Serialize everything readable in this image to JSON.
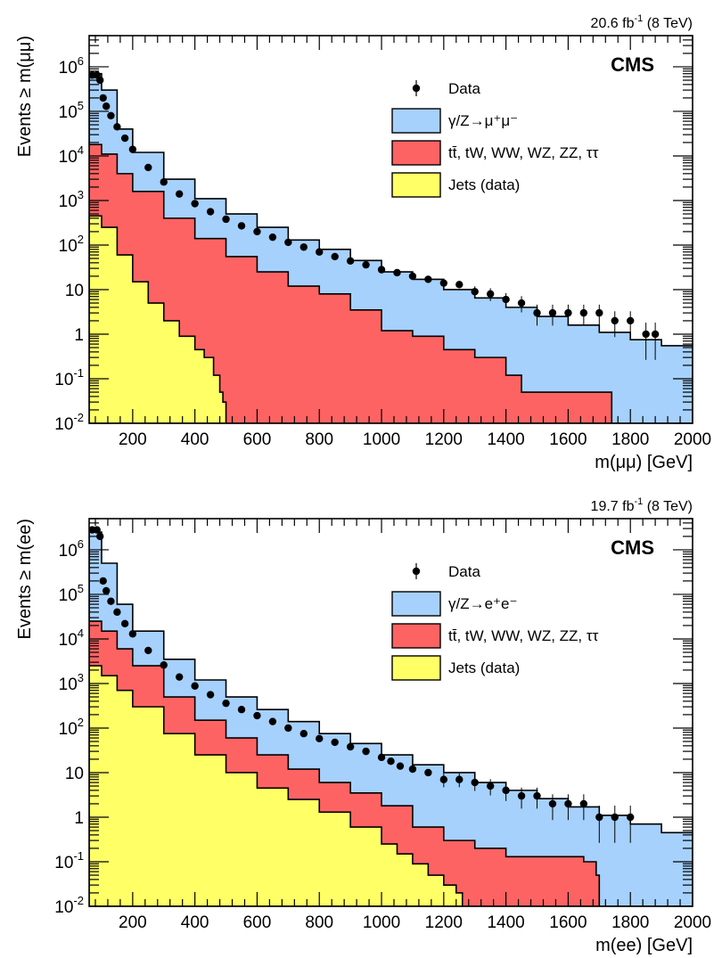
{
  "colors": {
    "dy": "#a6d1fc",
    "top": "#fe6363",
    "jets": "#ffff66",
    "outline": "#000000",
    "data": "#000000"
  },
  "chart_data": [
    {
      "type": "area",
      "lumi_label": "20.6 fb",
      "lumi_sup": "-1",
      "lumi_energy": "(8 TeV)",
      "experiment": "CMS",
      "xlabel": "m(μμ) [GeV]",
      "ylabel": "Events ≥ m(μμ)",
      "xlim": [
        60,
        2000
      ],
      "ylim": [
        0.01,
        5000000
      ],
      "log_y": true,
      "x_ticks": [
        200,
        400,
        600,
        800,
        1000,
        1200,
        1400,
        1600,
        1800,
        2000
      ],
      "y_ticks": [
        {
          "value": 0.01,
          "base": "10",
          "exp": "-2"
        },
        {
          "value": 0.1,
          "base": "10",
          "exp": "-1"
        },
        {
          "value": 1,
          "base": "1",
          "exp": ""
        },
        {
          "value": 10,
          "base": "10",
          "exp": ""
        },
        {
          "value": 100,
          "base": "10",
          "exp": "2"
        },
        {
          "value": 1000,
          "base": "10",
          "exp": "3"
        },
        {
          "value": 10000,
          "base": "10",
          "exp": "4"
        },
        {
          "value": 100000,
          "base": "10",
          "exp": "5"
        },
        {
          "value": 1000000,
          "base": "10",
          "exp": "6"
        }
      ],
      "legend": [
        {
          "key": "data",
          "label": "Data"
        },
        {
          "key": "dy",
          "label": "γ/Z→μ⁺μ⁻"
        },
        {
          "key": "top",
          "label": "tt̄, tW, WW, WZ, ZZ, ττ"
        },
        {
          "key": "jets",
          "label": "Jets (data)"
        }
      ],
      "series": [
        {
          "key": "jets",
          "x": [
            60,
            100,
            150,
            200,
            250,
            300,
            350,
            400,
            430,
            460,
            480,
            490,
            500
          ],
          "y": [
            450,
            250,
            60,
            15,
            5,
            2,
            0.9,
            0.45,
            0.3,
            0.12,
            0.05,
            0.03,
            0.01
          ]
        },
        {
          "key": "top",
          "x": [
            60,
            100,
            150,
            200,
            300,
            400,
            500,
            600,
            700,
            800,
            900,
            1000,
            1100,
            1200,
            1300,
            1400,
            1450,
            1500,
            1600,
            1700,
            1740
          ],
          "y": [
            18000,
            11000,
            4000,
            1600,
            400,
            140,
            55,
            25,
            12,
            8,
            3.5,
            1.2,
            0.9,
            0.45,
            0.3,
            0.12,
            0.05,
            0.05,
            0.05,
            0.05,
            0.01
          ]
        },
        {
          "key": "dy",
          "x": [
            60,
            100,
            150,
            200,
            300,
            400,
            500,
            600,
            700,
            800,
            900,
            1000,
            1100,
            1200,
            1300,
            1400,
            1500,
            1600,
            1700,
            1800,
            1900,
            2000
          ],
          "y": [
            700000,
            300000,
            40000,
            12000,
            3000,
            1100,
            500,
            250,
            130,
            80,
            45,
            25,
            17,
            10,
            6.5,
            4,
            2.5,
            1.6,
            1.1,
            0.75,
            0.55,
            0.38
          ]
        }
      ],
      "data_points": {
        "x": [
          70,
          85,
          95,
          105,
          115,
          130,
          150,
          175,
          200,
          250,
          300,
          350,
          400,
          450,
          500,
          550,
          600,
          650,
          700,
          750,
          800,
          850,
          900,
          950,
          1000,
          1050,
          1100,
          1150,
          1200,
          1250,
          1300,
          1350,
          1400,
          1450,
          1500,
          1550,
          1600,
          1650,
          1700,
          1750,
          1800,
          1850,
          1880
        ],
        "y": [
          650000,
          650000,
          500000,
          200000,
          130000,
          80000,
          45000,
          25000,
          14000,
          5500,
          2600,
          1400,
          850,
          560,
          380,
          270,
          200,
          150,
          115,
          90,
          70,
          55,
          44,
          36,
          28,
          24,
          20,
          17,
          14,
          13,
          9,
          8,
          6,
          5,
          3,
          3,
          3,
          3,
          3,
          2,
          2,
          1,
          1
        ]
      }
    },
    {
      "type": "area",
      "lumi_label": "19.7 fb",
      "lumi_sup": "-1",
      "lumi_energy": "(8 TeV)",
      "experiment": "CMS",
      "xlabel": "m(ee) [GeV]",
      "ylabel": "Events ≥ m(ee)",
      "xlim": [
        60,
        2000
      ],
      "ylim": [
        0.01,
        5000000
      ],
      "log_y": true,
      "x_ticks": [
        200,
        400,
        600,
        800,
        1000,
        1200,
        1400,
        1600,
        1800,
        2000
      ],
      "y_ticks": [
        {
          "value": 0.01,
          "base": "10",
          "exp": "-2"
        },
        {
          "value": 0.1,
          "base": "10",
          "exp": "-1"
        },
        {
          "value": 1,
          "base": "1",
          "exp": ""
        },
        {
          "value": 10,
          "base": "10",
          "exp": ""
        },
        {
          "value": 100,
          "base": "10",
          "exp": "2"
        },
        {
          "value": 1000,
          "base": "10",
          "exp": "3"
        },
        {
          "value": 10000,
          "base": "10",
          "exp": "4"
        },
        {
          "value": 100000,
          "base": "10",
          "exp": "5"
        },
        {
          "value": 1000000,
          "base": "10",
          "exp": "6"
        }
      ],
      "legend": [
        {
          "key": "data",
          "label": "Data"
        },
        {
          "key": "dy",
          "label": "γ/Z→e⁺e⁻"
        },
        {
          "key": "top",
          "label": "tt̄, tW, WW, WZ, ZZ, ττ"
        },
        {
          "key": "jets",
          "label": "Jets (data)"
        }
      ],
      "series": [
        {
          "key": "jets",
          "x": [
            60,
            100,
            150,
            200,
            300,
            400,
            500,
            600,
            700,
            800,
            900,
            1000,
            1050,
            1100,
            1150,
            1200,
            1240,
            1260
          ],
          "y": [
            2500,
            1500,
            700,
            300,
            75,
            25,
            10,
            4.5,
            2.5,
            1.3,
            0.6,
            0.25,
            0.15,
            0.09,
            0.05,
            0.03,
            0.02,
            0.01
          ]
        },
        {
          "key": "top",
          "x": [
            60,
            100,
            150,
            200,
            300,
            400,
            500,
            600,
            700,
            800,
            900,
            1000,
            1100,
            1200,
            1300,
            1400,
            1500,
            1600,
            1650,
            1690,
            1700
          ],
          "y": [
            25000,
            15000,
            6000,
            2500,
            500,
            150,
            60,
            25,
            12,
            6,
            3.5,
            1.8,
            0.6,
            0.3,
            0.2,
            0.13,
            0.13,
            0.13,
            0.1,
            0.05,
            0.01
          ]
        },
        {
          "key": "dy",
          "x": [
            60,
            100,
            150,
            200,
            300,
            400,
            500,
            600,
            700,
            800,
            900,
            1000,
            1100,
            1200,
            1300,
            1400,
            1500,
            1600,
            1700,
            1800,
            1900,
            2000
          ],
          "y": [
            2500000,
            500000,
            60000,
            15000,
            3500,
            1200,
            500,
            260,
            140,
            75,
            45,
            25,
            15,
            10,
            6,
            4,
            2.6,
            1.7,
            1.1,
            0.7,
            0.45,
            0.3
          ]
        }
      ],
      "data_points": {
        "x": [
          70,
          85,
          95,
          105,
          115,
          130,
          150,
          175,
          200,
          250,
          300,
          350,
          400,
          450,
          500,
          550,
          600,
          650,
          700,
          750,
          800,
          850,
          900,
          950,
          1000,
          1030,
          1060,
          1100,
          1150,
          1200,
          1250,
          1300,
          1350,
          1400,
          1450,
          1500,
          1550,
          1600,
          1650,
          1700,
          1750,
          1800
        ],
        "y": [
          2800000,
          2800000,
          2000000,
          200000,
          120000,
          70000,
          40000,
          22000,
          13000,
          5500,
          2600,
          1400,
          880,
          560,
          360,
          260,
          190,
          140,
          100,
          75,
          58,
          48,
          38,
          30,
          22,
          18,
          14,
          12,
          10,
          7,
          7,
          6,
          5,
          4,
          3,
          3,
          2,
          2,
          2,
          1,
          1,
          1
        ]
      }
    }
  ]
}
